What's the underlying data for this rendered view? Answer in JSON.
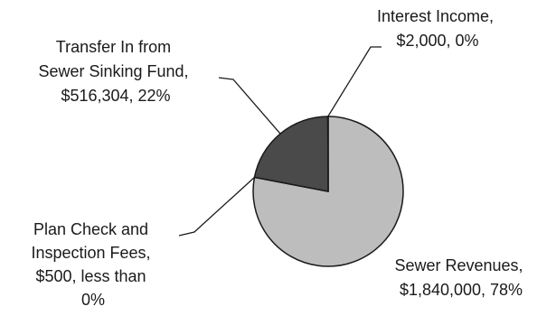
{
  "chart_data": {
    "type": "pie",
    "title": "",
    "slices": [
      {
        "label": "Sewer Revenues",
        "value": 1840000,
        "percent_label": "78%",
        "label_lines": [
          "Sewer Revenues,",
          "$1,840,000, 78%"
        ],
        "color": "#bdbdbd"
      },
      {
        "label": "Plan Check and Inspection Fees",
        "value": 500,
        "percent_label": "less than 0%",
        "label_lines": [
          "Plan Check and",
          "Inspection Fees,",
          "$500, less than",
          "0%"
        ],
        "color": "#9e9e9e"
      },
      {
        "label": "Transfer In from Sewer Sinking Fund",
        "value": 516304,
        "percent_label": "22%",
        "label_lines": [
          "Transfer In from",
          "Sewer Sinking Fund,",
          "$516,304, 22%"
        ],
        "color": "#4a4a4a"
      },
      {
        "label": "Interest Income",
        "value": 2000,
        "percent_label": "0%",
        "label_lines": [
          "Interest Income,",
          "$2,000, 0%"
        ],
        "color": "#7a7a7a"
      }
    ],
    "legend": "none",
    "colors": {
      "outline": "#1a1a1a",
      "text": "#1a1a1a"
    }
  }
}
